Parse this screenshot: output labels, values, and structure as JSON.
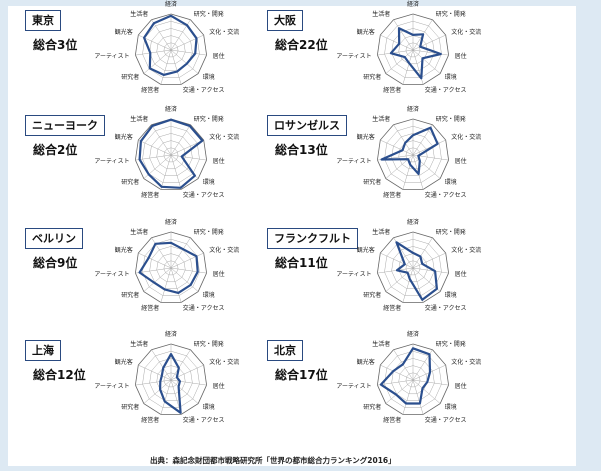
{
  "source": "出典：森記念財団都市戦略研究所「世界の都市総合力ランキング2016」",
  "chart_data": {
    "type": "radar",
    "axes": [
      "経済",
      "研究・開発",
      "文化・交流",
      "居住",
      "環境",
      "交通・アクセス",
      "経営者",
      "研究者",
      "アーティスト",
      "観光客",
      "生活者"
    ],
    "range": [
      0,
      1
    ],
    "grid_rings": 5,
    "line_color": "#2b4f8e",
    "charts": [
      {
        "city": "東京",
        "rank": "総合3位",
        "values": [
          0.95,
          0.82,
          0.78,
          0.68,
          0.58,
          0.62,
          0.72,
          0.78,
          0.58,
          0.82,
          0.88
        ]
      },
      {
        "city": "大阪",
        "rank": "総合22位",
        "values": [
          0.42,
          0.52,
          0.22,
          0.78,
          0.35,
          0.82,
          0.38,
          0.3,
          0.62,
          0.42,
          0.72
        ]
      },
      {
        "city": "ニューヨーク",
        "rank": "総合2位",
        "values": [
          0.98,
          0.96,
          0.96,
          0.3,
          0.88,
          0.95,
          0.92,
          0.82,
          0.88,
          0.92,
          0.96
        ]
      },
      {
        "city": "ロサンゼルス",
        "rank": "総合13位",
        "values": [
          0.55,
          0.9,
          0.75,
          0.15,
          0.25,
          0.55,
          0.28,
          0.18,
          0.88,
          0.32,
          0.4
        ]
      },
      {
        "city": "ベルリン",
        "rank": "総合9位",
        "values": [
          0.7,
          0.62,
          0.78,
          0.75,
          0.72,
          0.72,
          0.62,
          0.62,
          0.88,
          0.68,
          0.8
        ]
      },
      {
        "city": "フランクフルト",
        "rank": "総合11位",
        "values": [
          0.42,
          0.38,
          0.28,
          0.62,
          0.88,
          0.92,
          0.32,
          0.2,
          0.45,
          0.25,
          0.85
        ]
      },
      {
        "city": "上海",
        "rank": "総合12位",
        "values": [
          0.72,
          0.4,
          0.18,
          0.25,
          0.28,
          0.95,
          0.62,
          0.4,
          0.3,
          0.28,
          0.4
        ]
      },
      {
        "city": "北京",
        "rank": "総合17位",
        "values": [
          0.88,
          0.85,
          0.52,
          0.4,
          0.35,
          0.68,
          0.68,
          0.62,
          0.9,
          0.6,
          0.52
        ]
      }
    ]
  }
}
